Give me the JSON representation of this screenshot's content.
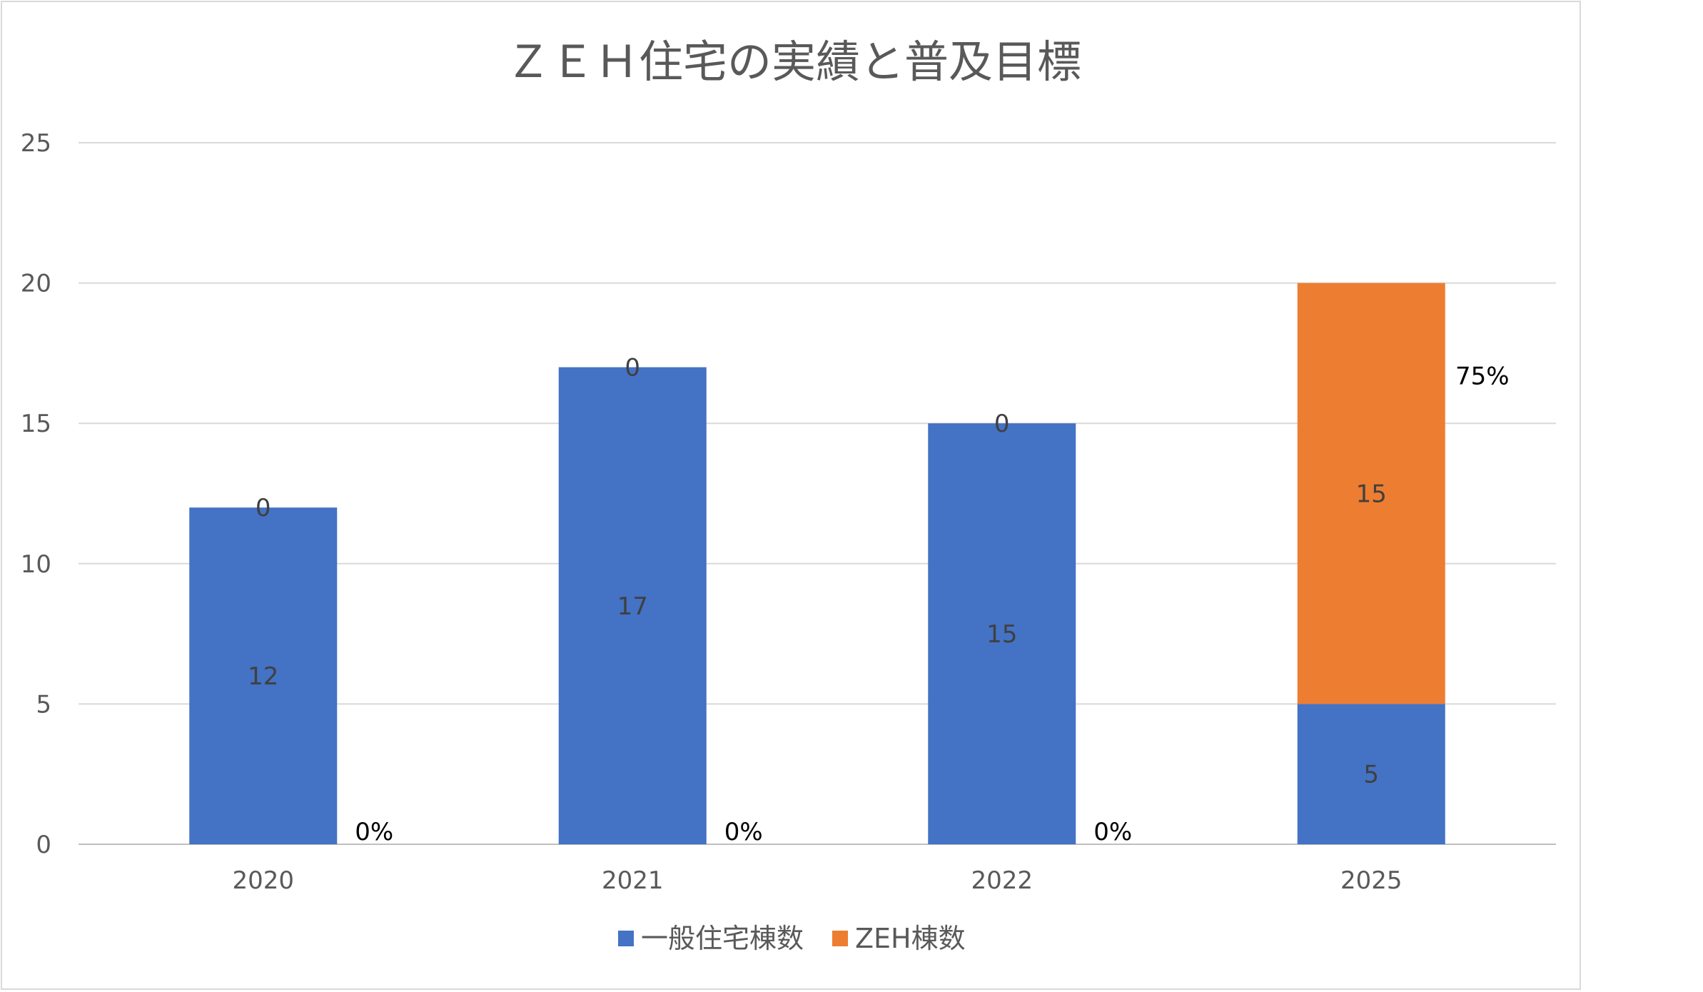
{
  "chart_data": {
    "type": "bar",
    "stacked": true,
    "title": "ＺＥＨ住宅の実績と普及目標",
    "categories": [
      "2020",
      "2021",
      "2022",
      "2025"
    ],
    "series": [
      {
        "name": "一般住宅棟数",
        "color": "#4472c4",
        "values": [
          12,
          17,
          15,
          5
        ]
      },
      {
        "name": "ZEH棟数",
        "color": "#ed7d31",
        "values": [
          0,
          0,
          0,
          15
        ]
      }
    ],
    "data_labels": {
      "一般住宅棟数": [
        "12",
        "17",
        "15",
        "5"
      ],
      "ZEH棟数": [
        "0",
        "0",
        "0",
        "15"
      ]
    },
    "percent_labels": [
      "0%",
      "0%",
      "0%",
      "75%"
    ],
    "y_ticks": [
      "0",
      "5",
      "10",
      "15",
      "20",
      "25"
    ],
    "ylim": [
      0,
      25
    ],
    "grid": true,
    "legend_position": "bottom"
  }
}
